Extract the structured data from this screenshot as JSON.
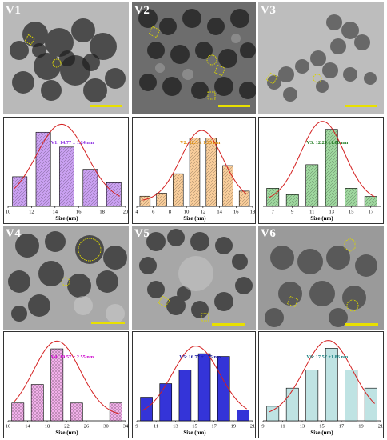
{
  "figure": {
    "panels": [
      {
        "id": "V1",
        "label": "V1",
        "tone": "#7d7d7d"
      },
      {
        "id": "V2",
        "label": "V2",
        "tone": "#5a5a5a"
      },
      {
        "id": "V3",
        "label": "V3",
        "tone": "#9a9a9a"
      },
      {
        "id": "V4",
        "label": "V4",
        "tone": "#8a8a8a"
      },
      {
        "id": "V5",
        "label": "V5",
        "tone": "#8f8f8f"
      },
      {
        "id": "V6",
        "label": "V6",
        "tone": "#858585"
      }
    ],
    "scale_bar_color": "#e8e000",
    "marker_color": "#d9d400"
  },
  "chart_data": [
    {
      "type": "bar",
      "panel": "V1",
      "legend": "V1: 14.77 ± 1.24 nm",
      "legend_color": "#8a2be2",
      "fill": "#c9a0f0",
      "hatch": "diag",
      "xlabel": "Size (nm)",
      "xlim": [
        10,
        20
      ],
      "xticks": [
        10,
        12,
        14,
        16,
        18,
        20
      ],
      "x": [
        12,
        13,
        14,
        15,
        16,
        17,
        18,
        19
      ],
      "values": [
        0,
        0,
        0,
        0,
        0,
        0,
        0,
        0
      ],
      "bars": [
        [
          11,
          4
        ],
        [
          13,
          10
        ],
        [
          15,
          8
        ],
        [
          17,
          5
        ],
        [
          19,
          3.2
        ]
      ],
      "ylim": [
        0,
        11
      ],
      "fit": "gaussian"
    },
    {
      "type": "bar",
      "panel": "V2",
      "legend": "V2: 12.5 ± 1.35 nm",
      "legend_color": "#e08a00",
      "fill": "#f7cc9a",
      "hatch": "diag",
      "xlabel": "Size (nm)",
      "xlim": [
        4,
        18
      ],
      "xticks": [
        4,
        6,
        8,
        10,
        12,
        14,
        16,
        18
      ],
      "bars": [
        [
          5,
          1
        ],
        [
          7,
          1.3
        ],
        [
          9,
          3.2
        ],
        [
          11,
          6.7
        ],
        [
          13,
          6.7
        ],
        [
          15,
          4
        ],
        [
          17,
          1.5
        ]
      ],
      "ylim": [
        0,
        8
      ],
      "fit": "gaussian"
    },
    {
      "type": "bar",
      "panel": "V3",
      "legend": "V3: 12.29 ±1.06 nm",
      "legend_color": "#1e7a1e",
      "fill": "#9ed69e",
      "hatch": "diag",
      "xlabel": "Size (nm)",
      "xlim": [
        6,
        18
      ],
      "xticks": [
        7,
        9,
        11,
        13,
        15,
        17
      ],
      "bars": [
        [
          7,
          2
        ],
        [
          9,
          1.3
        ],
        [
          11,
          4.6
        ],
        [
          13,
          8.5
        ],
        [
          15,
          2
        ],
        [
          17,
          1.1
        ]
      ],
      "ylim": [
        0,
        9
      ],
      "fit": "gaussian"
    },
    {
      "type": "bar",
      "panel": "V4",
      "legend": "V4: 19.57 ± 2.55 nm",
      "legend_color": "#cc00cc",
      "fill": "#f2b0ea",
      "hatch": "cross",
      "xlabel": "Size (nm)",
      "xlim": [
        10,
        34
      ],
      "xticks": [
        10,
        14,
        18,
        22,
        26,
        30,
        34
      ],
      "bars": [
        [
          12,
          2.4
        ],
        [
          16,
          4.9
        ],
        [
          20,
          9.7
        ],
        [
          24,
          2.4
        ],
        [
          32,
          2.4
        ]
      ],
      "ylim": [
        0,
        11
      ],
      "fit": "gaussian"
    },
    {
      "type": "bar",
      "panel": "V5",
      "legend": "V5: 16.77 ±1.75 nm",
      "legend_color": "#1a1aa0",
      "fill": "#3434d8",
      "hatch": "none",
      "xlabel": "Size (nm)",
      "xlim": [
        9,
        21
      ],
      "xticks": [
        9,
        11,
        13,
        15,
        17,
        19,
        21
      ],
      "bars": [
        [
          10,
          2.6
        ],
        [
          12,
          4.1
        ],
        [
          14,
          5.6
        ],
        [
          16,
          7.4
        ],
        [
          18,
          7.1
        ],
        [
          20,
          1.2
        ]
      ],
      "ylim": [
        0,
        9
      ],
      "fit": "gaussian"
    },
    {
      "type": "bar",
      "panel": "V6",
      "legend": "V6: 17.57 ±1.86 nm",
      "legend_color": "#1a7f7f",
      "fill": "#bfe3e3",
      "hatch": "none",
      "xlabel": "Size (nm)",
      "xlim": [
        9,
        21
      ],
      "xticks": [
        9,
        11,
        13,
        15,
        17,
        19,
        21
      ],
      "bars": [
        [
          10,
          1.6
        ],
        [
          12,
          3.6
        ],
        [
          14,
          5.6
        ],
        [
          16,
          8
        ],
        [
          18,
          5.6
        ],
        [
          20,
          3.6
        ]
      ],
      "ylim": [
        0,
        9
      ],
      "fit": "gaussian"
    }
  ]
}
